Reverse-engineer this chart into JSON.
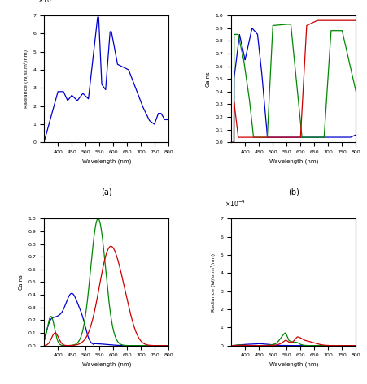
{
  "xlim": [
    350,
    800
  ],
  "xlabel": "Wavelength (nm)",
  "ylabel_a": "Radiance (W/sr.m²/nm)",
  "ylabel_b": "Gains",
  "ylabel_c": "Gains",
  "ylabel_d": "Radiance (W/sr.m²/nm)",
  "ylim_a": [
    0,
    7
  ],
  "ylim_b": [
    0,
    1
  ],
  "ylim_c": [
    0,
    1
  ],
  "ylim_d": [
    0,
    7
  ],
  "background_color": "#ffffff",
  "line_color_blue": "#0000cc",
  "line_color_green": "#008800",
  "line_color_red": "#cc0000",
  "xticks": [
    400,
    450,
    500,
    550,
    600,
    650,
    700,
    750,
    800
  ],
  "yticks_01": [
    0,
    0.1,
    0.2,
    0.3,
    0.4,
    0.5,
    0.6,
    0.7,
    0.8,
    0.9,
    1.0
  ],
  "yticks_a": [
    0,
    1,
    2,
    3,
    4,
    5,
    6,
    7
  ],
  "yticks_d": [
    0,
    1,
    2,
    3,
    4,
    5,
    6,
    7
  ]
}
